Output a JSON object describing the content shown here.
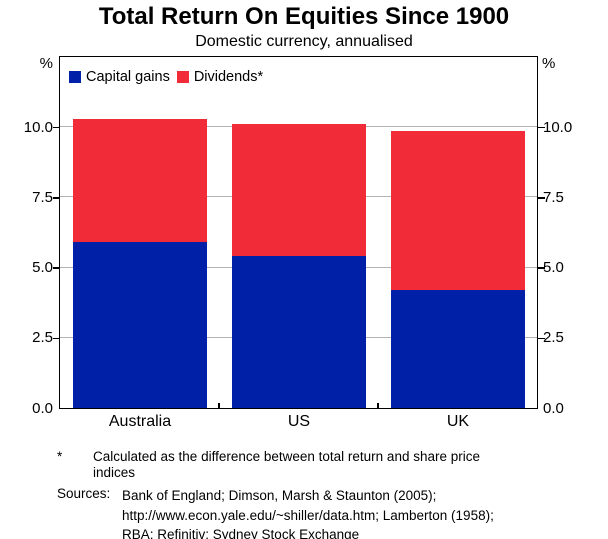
{
  "header": {
    "title": "Total Return On Equities Since 1900",
    "subtitle": "Domestic currency, annualised"
  },
  "axes": {
    "unit_left": "%",
    "unit_right": "%"
  },
  "chart_data": {
    "type": "bar",
    "stacked": true,
    "categories": [
      "Australia",
      "US",
      "UK"
    ],
    "series": [
      {
        "name": "Capital gains",
        "color": "#0020A8",
        "values": [
          5.9,
          5.4,
          4.2
        ]
      },
      {
        "name": "Dividends*",
        "color": "#F22B39",
        "values": [
          4.4,
          4.7,
          5.65
        ]
      }
    ],
    "totals": [
      10.3,
      10.1,
      9.85
    ],
    "title": "Total Return On Equities Since 1900",
    "subtitle": "Domestic currency, annualised",
    "xlabel": "",
    "ylabel": "%",
    "ylim": [
      0,
      12.5
    ],
    "yticks": [
      0.0,
      2.5,
      5.0,
      7.5,
      10.0
    ],
    "ytick_labels": [
      "0.0",
      "2.5",
      "5.0",
      "7.5",
      "10.0"
    ],
    "grid": "horizontal-light-gray",
    "legend_position": "top-left-inside"
  },
  "footnote": {
    "marker": "*",
    "lines": [
      "Calculated as the difference between total return and share price",
      "indices"
    ]
  },
  "sources": {
    "label": "Sources:",
    "lines": [
      "Bank of England; Dimson, Marsh & Staunton (2005);",
      "http://www.econ.yale.edu/~shiller/data.htm; Lamberton (1958);",
      "RBA; Refinitiv; Sydney Stock Exchange"
    ]
  }
}
